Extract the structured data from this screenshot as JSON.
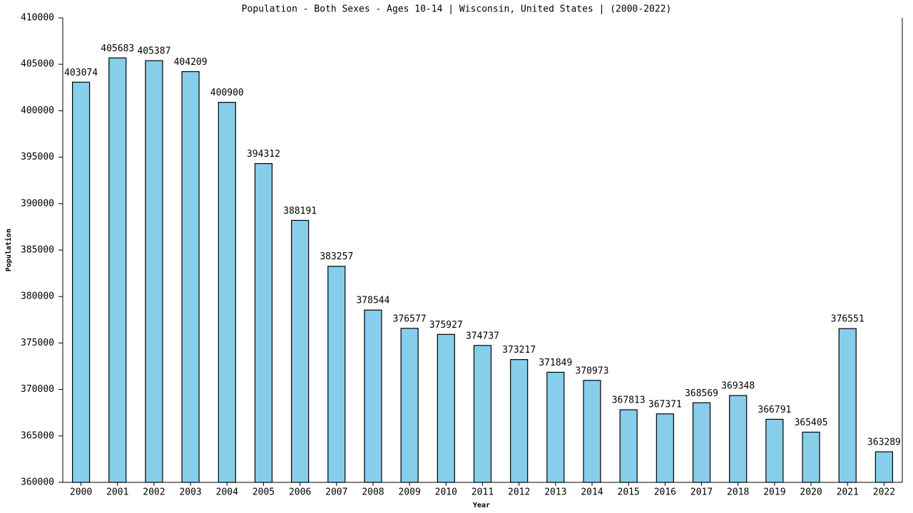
{
  "chart_data": {
    "type": "bar",
    "title": "Population - Both Sexes - Ages 10-14 | Wisconsin, United States |  (2000-2022)",
    "x_label": "Year",
    "y_label": "Population",
    "categories": [
      "2000",
      "2001",
      "2002",
      "2003",
      "2004",
      "2005",
      "2006",
      "2007",
      "2008",
      "2009",
      "2010",
      "2011",
      "2012",
      "2013",
      "2014",
      "2015",
      "2016",
      "2017",
      "2018",
      "2019",
      "2020",
      "2021",
      "2022"
    ],
    "values": [
      403074,
      405683,
      405387,
      404209,
      400900,
      394312,
      388191,
      383257,
      378544,
      376577,
      375927,
      374737,
      373217,
      371849,
      370973,
      367813,
      367371,
      368569,
      369348,
      366791,
      365405,
      376551,
      363289
    ],
    "color": "#87ceeb",
    "ylim": [
      360000,
      410000
    ],
    "yticks": [
      360000,
      365000,
      370000,
      375000,
      380000,
      385000,
      390000,
      395000,
      400000,
      405000,
      410000
    ]
  }
}
